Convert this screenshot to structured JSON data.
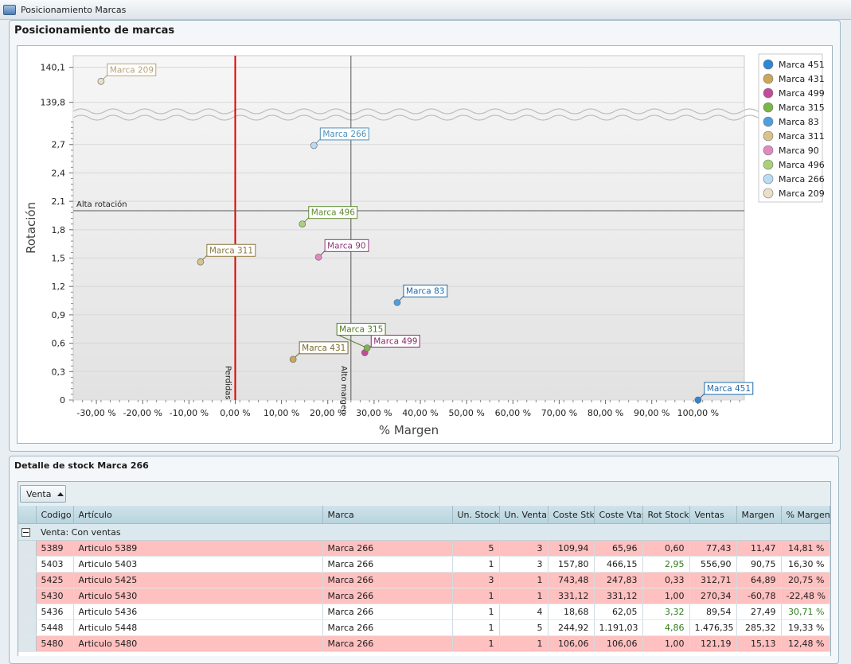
{
  "window": {
    "title": "Posicionamiento Marcas"
  },
  "chart_panel": {
    "title": "Posicionamiento de marcas"
  },
  "chart_data": {
    "type": "scatter",
    "title": "",
    "xlabel": "% Margen",
    "ylabel": "Rotación",
    "xlim": [
      -35,
      110
    ],
    "x_ticks": [
      "-30,00 %",
      "-20,00 %",
      "-10,00 %",
      "0,00 %",
      "10,00 %",
      "20,00 %",
      "30,00 %",
      "40,00 %",
      "50,00 %",
      "60,00 %",
      "70,00 %",
      "80,00 %",
      "90,00 %",
      "100,00 %"
    ],
    "x_tick_values": [
      -30,
      -20,
      -10,
      0,
      10,
      20,
      30,
      40,
      50,
      60,
      70,
      80,
      90,
      100
    ],
    "y_ticks": [
      "0",
      "0,3",
      "0,6",
      "0,9",
      "1,2",
      "1,5",
      "1,8",
      "2,1",
      "2,4",
      "2,7",
      "139,8",
      "140,1"
    ],
    "y_tick_values": [
      0,
      0.3,
      0.6,
      0.9,
      1.2,
      1.5,
      1.8,
      2.1,
      2.4,
      2.7,
      139.8,
      140.1
    ],
    "y_axis_break": [
      2.95,
      139.75
    ],
    "reference_lines": [
      {
        "axis": "x",
        "value": 0,
        "label": "Perdidas",
        "color": "#e00000"
      },
      {
        "axis": "x",
        "value": 25,
        "label": "Alto margen",
        "color": "#555555"
      },
      {
        "axis": "y",
        "value": 2.0,
        "label": "Alta rotación",
        "color": "#555555"
      }
    ],
    "series": [
      {
        "name": "Marca 451",
        "color": "#2f86d6",
        "x": 100.0,
        "y": 0.0
      },
      {
        "name": "Marca 431",
        "color": "#c9a85a",
        "x": 12.5,
        "y": 0.43
      },
      {
        "name": "Marca 499",
        "color": "#c64a9b",
        "x": 28.0,
        "y": 0.5
      },
      {
        "name": "Marca 315",
        "color": "#7ab648",
        "x": 28.5,
        "y": 0.55
      },
      {
        "name": "Marca 83",
        "color": "#4e9fe0",
        "x": 35.0,
        "y": 1.03
      },
      {
        "name": "Marca 311",
        "color": "#d8c48a",
        "x": -7.5,
        "y": 1.46
      },
      {
        "name": "Marca 90",
        "color": "#e08ac2",
        "x": 18.0,
        "y": 1.51
      },
      {
        "name": "Marca 496",
        "color": "#a9d07a",
        "x": 14.5,
        "y": 1.86
      },
      {
        "name": "Marca 266",
        "color": "#b9dcf6",
        "x": 17.0,
        "y": 2.69
      },
      {
        "name": "Marca 209",
        "color": "#eadfc8",
        "x": -29.0,
        "y": 139.98
      }
    ],
    "label_colors": {
      "Marca 451": "#1f6aa8",
      "Marca 431": "#7c6a2b",
      "Marca 499": "#8a2a6a",
      "Marca 315": "#4f7a1e",
      "Marca 83": "#1f6aa8",
      "Marca 311": "#8c7a40",
      "Marca 90": "#8a3a7a",
      "Marca 496": "#5f8a2e",
      "Marca 266": "#4f8fba",
      "Marca 209": "#b8a27a"
    },
    "legend_position": "right",
    "grid": true
  },
  "detail_panel": {
    "title": "Detalle de stock Marca 266"
  },
  "grid": {
    "group_button": "Venta",
    "columns": [
      "Codigo",
      "Artículo",
      "Marca",
      "Un. Stock",
      "Un. Venta",
      "Coste Stk",
      "Coste Vtas",
      "Rot Stock",
      "Ventas",
      "Margen",
      "% Margen"
    ],
    "group_label": "Venta: Con ventas",
    "rows": [
      {
        "color": "red",
        "cells": [
          "5389",
          "Articulo 5389",
          "Marca 266",
          "5",
          "3",
          "109,94",
          "65,96",
          "0,60",
          "77,43",
          "11,47",
          "14,81 %"
        ],
        "green": []
      },
      {
        "color": "white",
        "cells": [
          "5403",
          "Articulo 5403",
          "Marca 266",
          "1",
          "3",
          "157,80",
          "466,15",
          "2,95",
          "556,90",
          "90,75",
          "16,30 %"
        ],
        "green": [
          7
        ]
      },
      {
        "color": "red",
        "cells": [
          "5425",
          "Articulo 5425",
          "Marca 266",
          "3",
          "1",
          "743,48",
          "247,83",
          "0,33",
          "312,71",
          "64,89",
          "20,75 %"
        ],
        "green": []
      },
      {
        "color": "red",
        "cells": [
          "5430",
          "Articulo 5430",
          "Marca 266",
          "1",
          "1",
          "331,12",
          "331,12",
          "1,00",
          "270,34",
          "-60,78",
          "-22,48 %"
        ],
        "green": []
      },
      {
        "color": "white",
        "cells": [
          "5436",
          "Articulo 5436",
          "Marca 266",
          "1",
          "4",
          "18,68",
          "62,05",
          "3,32",
          "89,54",
          "27,49",
          "30,71 %"
        ],
        "green": [
          7,
          10
        ]
      },
      {
        "color": "white",
        "cells": [
          "5448",
          "Articulo 5448",
          "Marca 266",
          "1",
          "5",
          "244,92",
          "1.191,03",
          "4,86",
          "1.476,35",
          "285,32",
          "19,33 %"
        ],
        "green": [
          7
        ]
      },
      {
        "color": "red",
        "cells": [
          "5480",
          "Articulo 5480",
          "Marca 266",
          "1",
          "1",
          "106,06",
          "106,06",
          "1,00",
          "121,19",
          "15,13",
          "12,48 %"
        ],
        "green": []
      }
    ]
  }
}
